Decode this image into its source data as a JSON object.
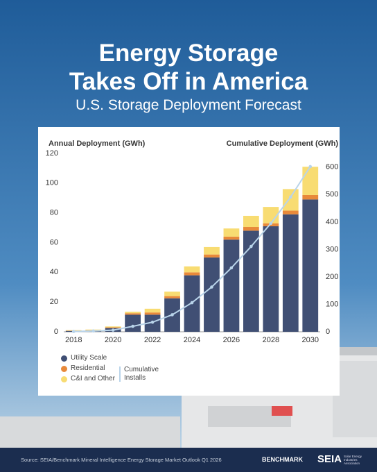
{
  "chart_data": {
    "type": "bar",
    "stacked": true,
    "title": [
      "Energy Storage",
      "Takes Off in America"
    ],
    "subtitle": "U.S. Storage Deployment Forecast",
    "y_label": "Annual Deployment (GWh)",
    "y2_label": "Cumulative Deployment (GWh)",
    "categories": [
      "2018",
      null,
      "2020",
      null,
      "2022",
      null,
      "2024",
      null,
      "2026",
      null,
      "2028",
      null,
      "2030"
    ],
    "series": [
      {
        "name": "Utility Scale",
        "color": "#404f74",
        "values": [
          0.6,
          0.8,
          2.5,
          11.5,
          11.5,
          22.5,
          38,
          50,
          62,
          68,
          71,
          79,
          89
        ]
      },
      {
        "name": "Residential",
        "color": "#e8893a",
        "values": [
          0.2,
          0.3,
          0.5,
          1,
          1.5,
          1.5,
          2,
          2,
          2,
          2.5,
          2,
          2.5,
          3
        ]
      },
      {
        "name": "C&I and Other",
        "color": "#f8dc72",
        "values": [
          0.3,
          0.4,
          0.6,
          1,
          2.5,
          3,
          4,
          5,
          5.5,
          7.5,
          11,
          14.5,
          19
        ]
      },
      {
        "name": "Cumulative Installs",
        "color": "#b9d4ea",
        "type": "line",
        "axis": "y2",
        "values": [
          1,
          3,
          6,
          20,
          35,
          62,
          106,
          163,
          233,
          311,
          395,
          491,
          602
        ]
      }
    ],
    "ylim": [
      0,
      120
    ],
    "yticks": [
      0,
      20,
      40,
      60,
      80,
      100,
      120
    ],
    "y2lim": [
      0,
      650
    ],
    "y2ticks": [
      0,
      100,
      200,
      300,
      400,
      500,
      600
    ],
    "grid": false
  },
  "footer": {
    "source": "Source: SEIA/Benchmark Mineral Intelligence Energy Storage Market Outlook Q1 2026",
    "logo1": "BENCHMARK",
    "logo2": "SEIA",
    "logo2_sub": "Solar Energy Industries Association"
  }
}
